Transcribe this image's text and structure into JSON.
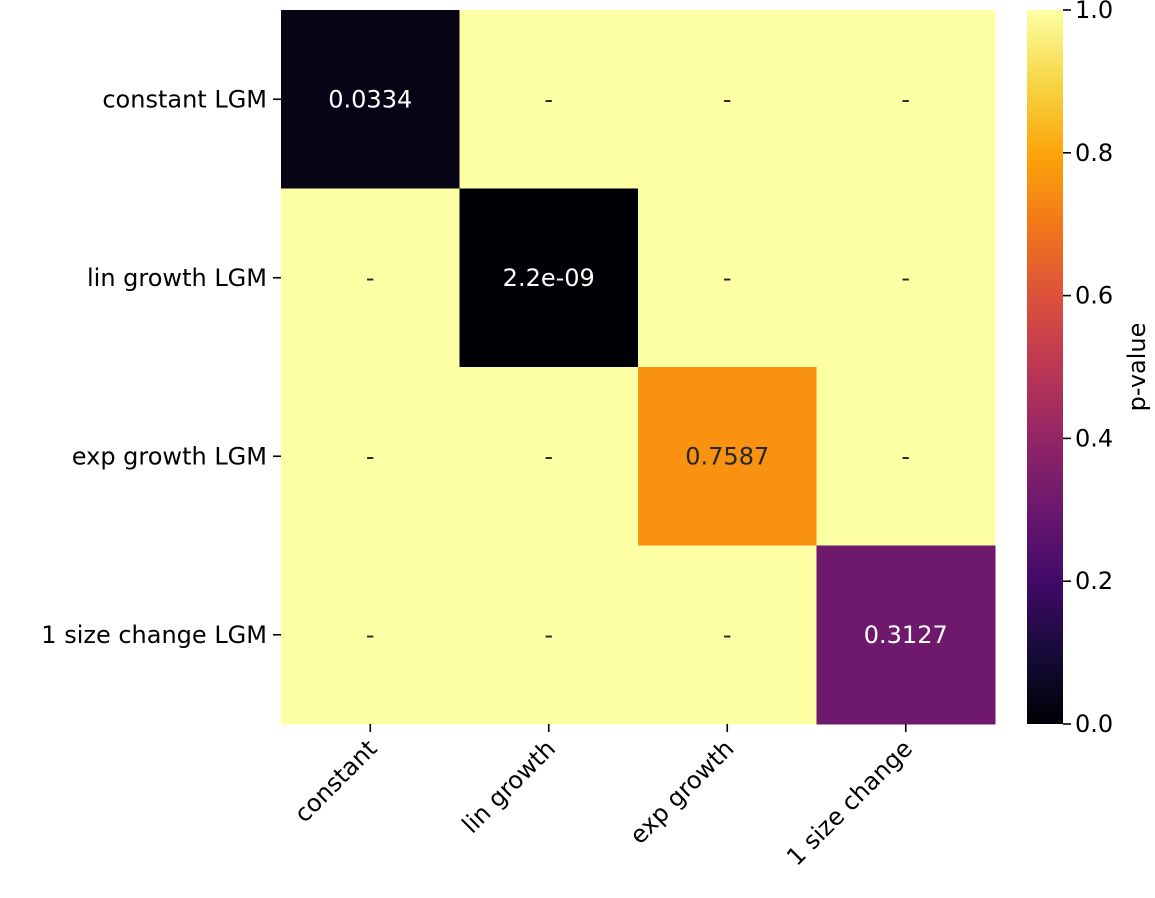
{
  "chart_data": {
    "type": "heatmap",
    "title": "",
    "xlabel": "",
    "ylabel": "",
    "x_categories": [
      "constant",
      "lin growth",
      "exp growth",
      "1 size change"
    ],
    "y_categories": [
      "constant LGM",
      "lin growth LGM",
      "exp growth LGM",
      "1 size change LGM"
    ],
    "values": [
      [
        0.0334,
        1,
        1,
        1
      ],
      [
        1,
        2.2e-09,
        1,
        1
      ],
      [
        1,
        1,
        0.7587,
        1
      ],
      [
        1,
        1,
        1,
        0.3127
      ]
    ],
    "annotations": [
      [
        "0.0334",
        "-",
        "-",
        "-"
      ],
      [
        "-",
        "2.2e-09",
        "-",
        "-"
      ],
      [
        "-",
        "-",
        "0.7587",
        "-"
      ],
      [
        "-",
        "-",
        "-",
        "0.3127"
      ]
    ],
    "colormap": "inferno",
    "vmin": 0.0,
    "vmax": 1.0,
    "colorbar": {
      "label": "p-value",
      "ticks": [
        0.0,
        0.2,
        0.4,
        0.6,
        0.8,
        1.0
      ],
      "tick_labels": [
        "0.0",
        "0.2",
        "0.4",
        "0.6",
        "0.8",
        "1.0"
      ]
    },
    "grid": false,
    "xtick_rotation": 45
  }
}
